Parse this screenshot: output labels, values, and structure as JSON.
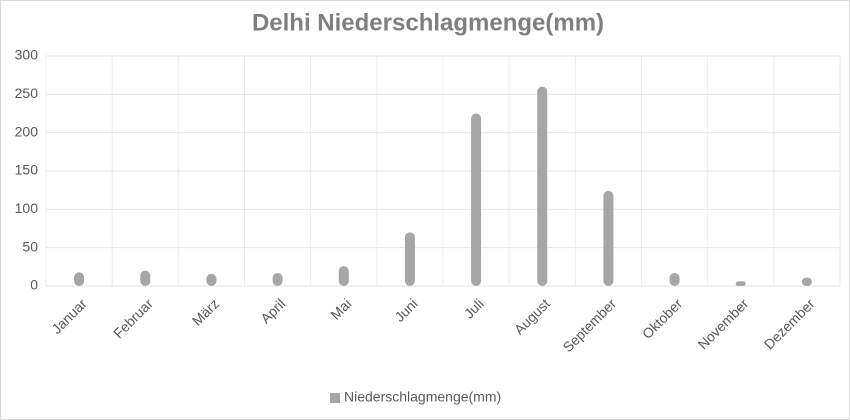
{
  "chart_data": {
    "type": "bar",
    "title": "Delhi Niederschlagmenge(mm)",
    "categories": [
      "Januar",
      "Februar",
      "März",
      "April",
      "Mai",
      "Juni",
      "Juli",
      "August",
      "September",
      "Oktober",
      "November",
      "Dezember"
    ],
    "series": [
      {
        "name": "Niederschlagmenge(mm)",
        "color": "#a6a6a6",
        "values": [
          18,
          20,
          16,
          17,
          26,
          70,
          225,
          260,
          124,
          17,
          6,
          11
        ]
      }
    ],
    "ylim": [
      0,
      300
    ],
    "yticks": [
      0,
      50,
      100,
      150,
      200,
      250,
      300
    ],
    "grid": true,
    "legend": "bottom"
  }
}
